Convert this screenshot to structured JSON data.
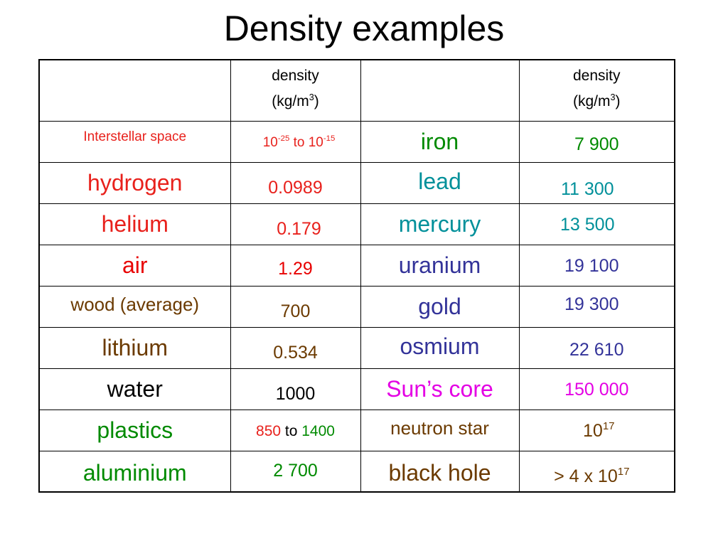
{
  "title": "Density examples",
  "header": {
    "density": "density",
    "unit_prefix": "(kg/m",
    "unit_exp": "3",
    "unit_suffix": ")"
  },
  "colors": {
    "red": "#e8211c",
    "darkred": "#cc2200",
    "green": "#008a00",
    "teal": "#00909a",
    "blue": "#333399",
    "brown": "#6b3a00",
    "magenta": "#e400e4",
    "black": "#000000"
  },
  "rows": [
    {
      "left_name": "Interstellar space",
      "left_val": {
        "a": "10",
        "a_exp": "-25",
        "mid": " to ",
        "b": "10",
        "b_exp": "-15"
      },
      "right_name": "iron",
      "right_val": "7 900"
    },
    {
      "left_name": "hydrogen",
      "left_val": "0.0989",
      "right_name": "lead",
      "right_val": "11 300"
    },
    {
      "left_name": "helium",
      "left_val": "0.179",
      "right_name": "mercury",
      "right_val": "13 500"
    },
    {
      "left_name": "air",
      "left_val": "1.29",
      "right_name": "uranium",
      "right_val": "19 100"
    },
    {
      "left_name": "wood (average)",
      "left_val": "700",
      "right_name": "gold",
      "right_val": "19 300"
    },
    {
      "left_name": "lithium",
      "left_val": "0.534",
      "right_name": "osmium",
      "right_val": "22 610"
    },
    {
      "left_name": "water",
      "left_val": "1000",
      "right_name": "Sun’s core",
      "right_val": "150 000"
    },
    {
      "left_name": "plastics",
      "left_val": {
        "a": "850",
        "mid": " to ",
        "b": "1400"
      },
      "right_name": "neutron star",
      "right_val": {
        "base": "10",
        "exp": "17"
      }
    },
    {
      "left_name": "aluminium",
      "left_val": "2 700",
      "right_name": "black hole",
      "right_val": {
        "prefix": "> 4 x ",
        "base": "10",
        "exp": "17"
      }
    }
  ]
}
